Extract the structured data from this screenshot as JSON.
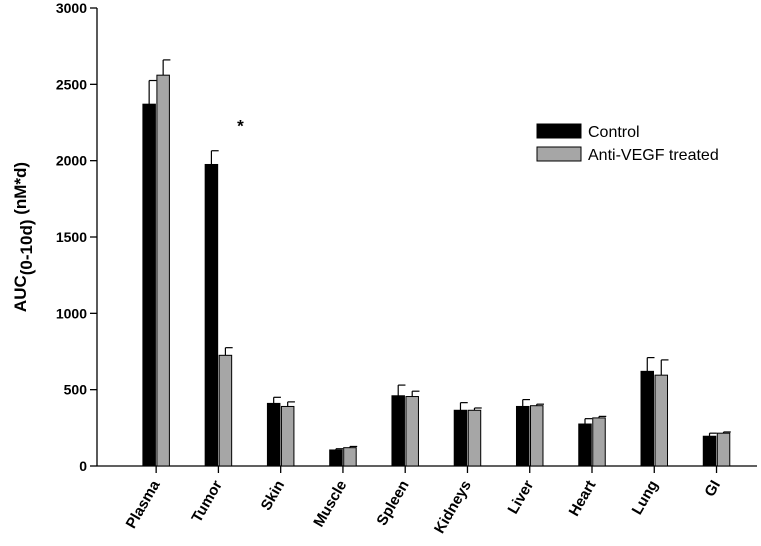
{
  "chart_data": {
    "type": "bar",
    "ylabel_main": "AUC",
    "ylabel_sub": "(0-10d)",
    "ylabel_unit": " (nM*d)",
    "ylim": [
      0,
      3000
    ],
    "yticks": [
      0,
      500,
      1000,
      1500,
      2000,
      2500,
      3000
    ],
    "categories": [
      "Plasma",
      "Tumor",
      "Skin",
      "Muscle",
      "Spleen",
      "Kidneys",
      "Liver",
      "Heart",
      "Lung",
      "GI"
    ],
    "series": [
      {
        "name": "Control",
        "color": "#000000",
        "values": [
          2370,
          1975,
          410,
          105,
          460,
          365,
          390,
          275,
          620,
          195
        ],
        "errors": [
          155,
          90,
          40,
          8,
          70,
          50,
          45,
          35,
          90,
          20
        ]
      },
      {
        "name": "Anti-VEGF treated",
        "color": "#a6a6a6",
        "values": [
          2560,
          725,
          390,
          120,
          455,
          365,
          395,
          315,
          595,
          215
        ],
        "errors": [
          100,
          50,
          30,
          8,
          35,
          15,
          10,
          10,
          100,
          8
        ]
      }
    ],
    "annotations": [
      {
        "category": "Tumor",
        "text": "*",
        "y": 2230
      }
    ],
    "legend_position": "top-right",
    "grid": false
  }
}
